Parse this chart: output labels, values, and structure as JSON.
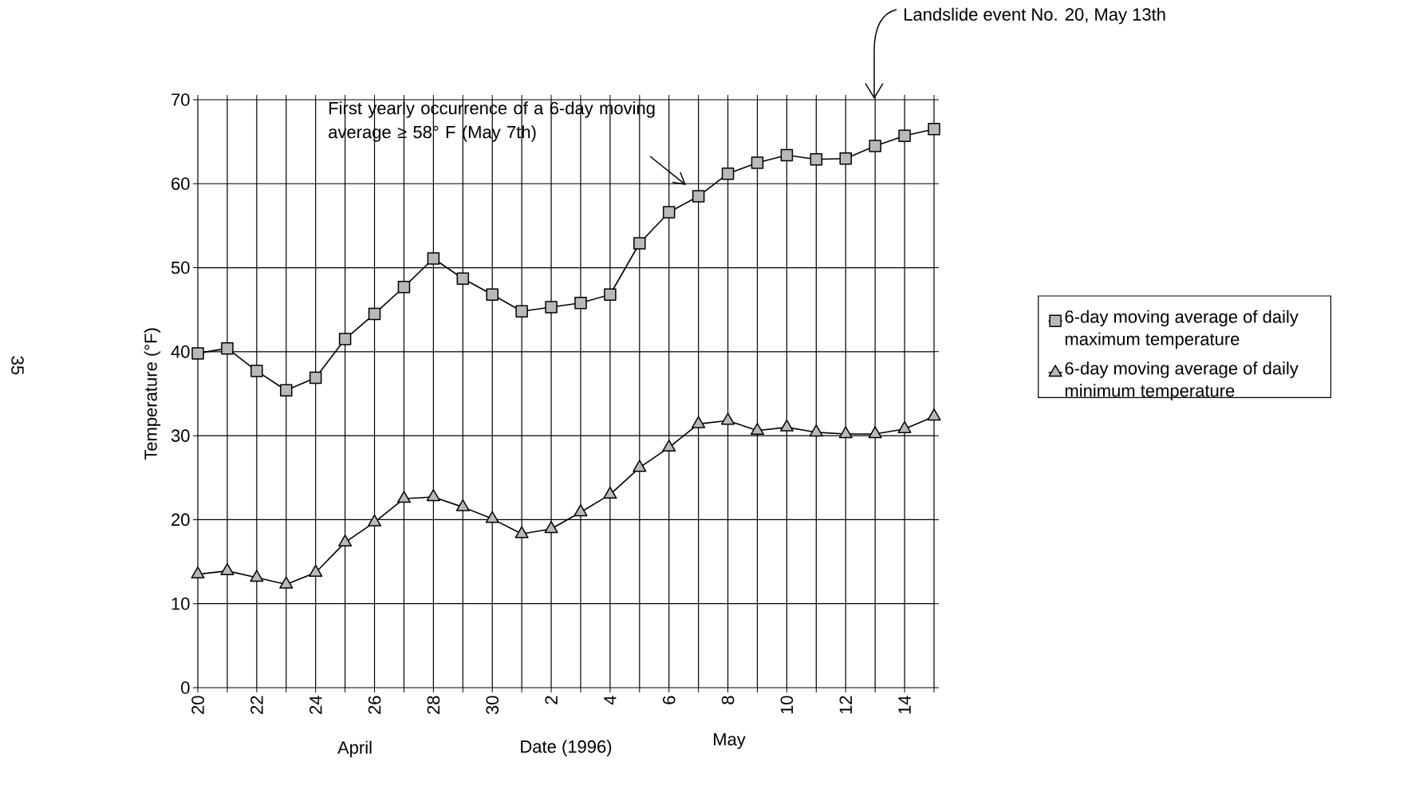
{
  "chart_data": {
    "type": "line",
    "xlabel": "Date (1996)",
    "ylabel": "Temperature (°F)",
    "categories": [
      "20",
      null,
      "22",
      null,
      "24",
      null,
      "26",
      null,
      "28",
      null,
      "30",
      null,
      "2",
      null,
      "4",
      null,
      "6",
      null,
      "8",
      null,
      "10",
      null,
      "12",
      null,
      "14",
      null
    ],
    "series": [
      {
        "name": "6-day moving average of daily maximum temperature",
        "color": "#000000",
        "marker": "square",
        "values": [
          39.8,
          40.4,
          37.7,
          35.4,
          36.9,
          41.5,
          44.5,
          47.7,
          51.1,
          48.7,
          46.8,
          44.8,
          45.3,
          45.8,
          46.8,
          52.9,
          56.6,
          58.5,
          61.2,
          62.5,
          63.4,
          62.9,
          63.0,
          64.5,
          65.7,
          66.5
        ]
      },
      {
        "name": "6-day moving average of daily minimum temperature",
        "color": "#000000",
        "marker": "triangle",
        "values": [
          13.5,
          13.9,
          13.1,
          12.3,
          13.7,
          17.3,
          19.7,
          22.5,
          22.7,
          21.5,
          20.1,
          18.3,
          18.9,
          20.9,
          23.0,
          26.2,
          28.6,
          31.4,
          31.8,
          30.6,
          31.0,
          30.4,
          30.2,
          30.2,
          30.8,
          32.3
        ]
      }
    ],
    "ylim": [
      0,
      70
    ],
    "yticks": [
      0,
      10,
      20,
      30,
      40,
      50,
      60,
      70
    ],
    "grid": true,
    "legend": "right",
    "annotations": [
      "First yearly occurrence of a 6-day moving average ≥ 58° F (May 7th)",
      "Landslide event No. 20, May 13th",
      "April",
      "May",
      "35"
    ]
  }
}
